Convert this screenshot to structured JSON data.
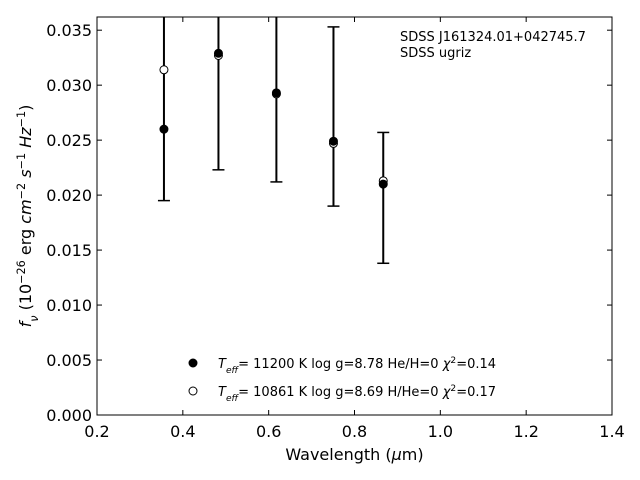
{
  "chart_data": {
    "type": "scatter",
    "xlabel": "Wavelength (μm)",
    "ylabel": "f_ν (10^-26 erg cm^-2 s^-1 Hz^-1)",
    "xlim": [
      0.2,
      1.4
    ],
    "ylim": [
      0.0,
      0.0362
    ],
    "x_ticks": [
      0.2,
      0.4,
      0.6,
      0.8,
      1.0,
      1.2,
      1.4
    ],
    "x_tick_labels": [
      "0.2",
      "0.4",
      "0.6",
      "0.8",
      "1.0",
      "1.2",
      "1.4"
    ],
    "y_ticks": [
      0.0,
      0.005,
      0.01,
      0.015,
      0.02,
      0.025,
      0.03,
      0.035
    ],
    "y_tick_labels": [
      "0.000",
      "0.005",
      "0.010",
      "0.015",
      "0.020",
      "0.025",
      "0.030",
      "0.035"
    ],
    "grid": false,
    "legend_position": "bottom-center",
    "annotations": [
      "SDSS J161324.01+042745.7",
      "SDSS ugriz"
    ],
    "observed": {
      "x": [
        0.356,
        0.483,
        0.618,
        0.751,
        0.867
      ],
      "y_low": [
        0.0195,
        0.0223,
        0.0212,
        0.019,
        0.0138
      ],
      "y_high": [
        0.043,
        0.043,
        0.043,
        0.0353,
        0.0257
      ]
    },
    "series": [
      {
        "name": "T_eff= 11200 K  log g=8.78  He/H=0  χ²=0.14",
        "marker": "filled-circle",
        "color": "#000000",
        "x": [
          0.356,
          0.483,
          0.618,
          0.751,
          0.867
        ],
        "y": [
          0.026,
          0.0329,
          0.0293,
          0.0249,
          0.021
        ]
      },
      {
        "name": "T_eff= 10861 K  log g=8.69  H/He=0  χ²=0.17",
        "marker": "open-circle",
        "color": "#000000",
        "x": [
          0.356,
          0.483,
          0.618,
          0.751,
          0.867
        ],
        "y": [
          0.0314,
          0.0327,
          0.0292,
          0.0247,
          0.0213
        ]
      }
    ]
  }
}
